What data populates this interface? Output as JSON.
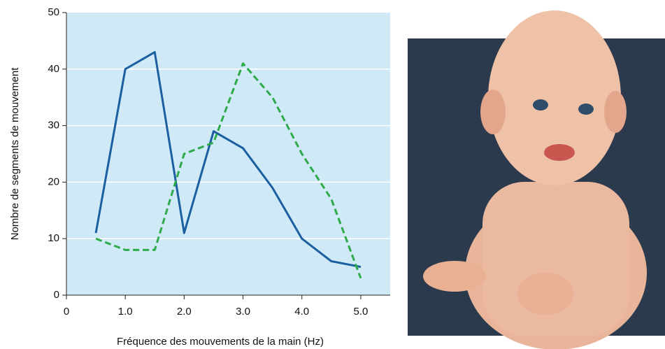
{
  "chart_data": {
    "type": "line",
    "x": [
      0.5,
      1.0,
      1.5,
      2.0,
      2.5,
      3.0,
      3.5,
      4.0,
      4.5,
      5.0
    ],
    "series": [
      {
        "color": "#1b5fa0",
        "values": [
          11,
          40,
          43,
          11,
          29,
          26,
          19,
          10,
          6,
          5
        ]
      },
      {
        "color": "#2eaa4a",
        "dashed": true,
        "values": [
          10,
          8,
          8,
          25,
          27,
          41,
          35,
          25,
          17,
          3
        ]
      }
    ],
    "xlim": [
      0,
      5.5
    ],
    "xticks": [
      0,
      {
        "value": 1,
        "label": "1.0"
      },
      {
        "value": 2,
        "label": "2.0"
      },
      {
        "value": 3,
        "label": "3.0"
      },
      {
        "value": 4,
        "label": "4.0"
      },
      {
        "value": 5,
        "label": "5.0"
      }
    ],
    "ylim": [
      0,
      50
    ],
    "yticks": [
      0,
      10,
      20,
      30,
      40,
      50
    ],
    "xlabel": "Fréquence des mouvements de la main (Hz)",
    "ylabel": "Nombre de segments de mouvement",
    "grid": true
  }
}
